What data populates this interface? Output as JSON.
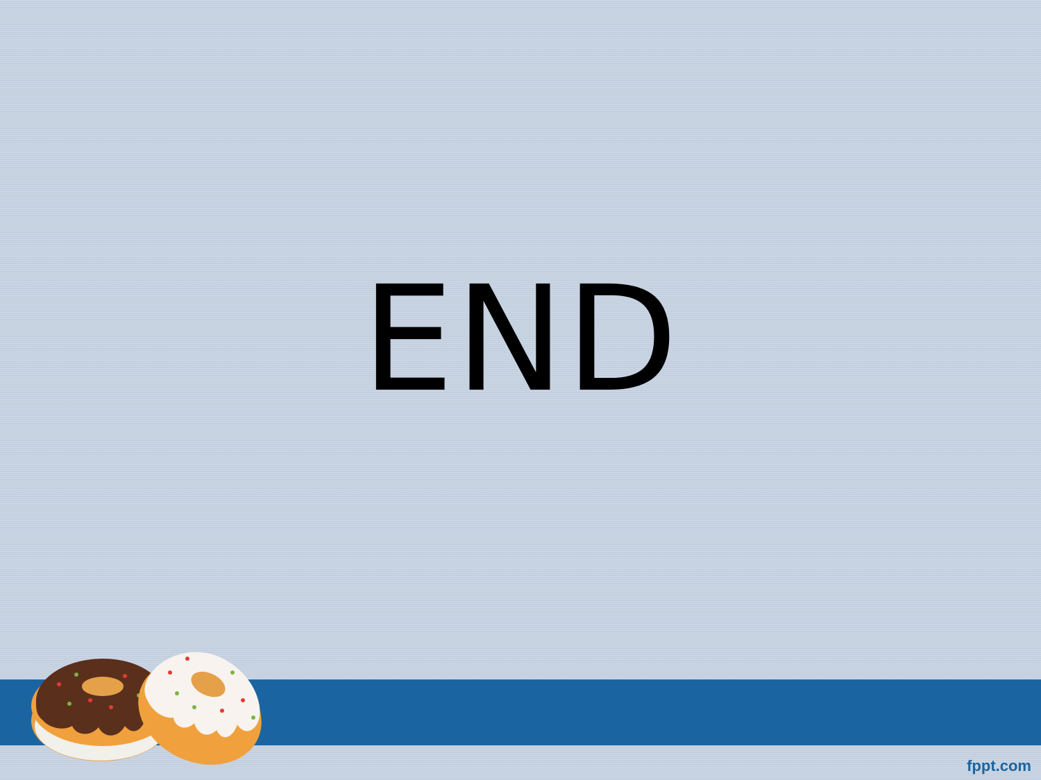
{
  "slide": {
    "title": "END",
    "footer_brand": "fppt.com"
  },
  "colors": {
    "background": "#c9d4e3",
    "band": "#1a65a1",
    "text": "#000000"
  },
  "icons": {
    "illustration": "donuts-illustration"
  }
}
